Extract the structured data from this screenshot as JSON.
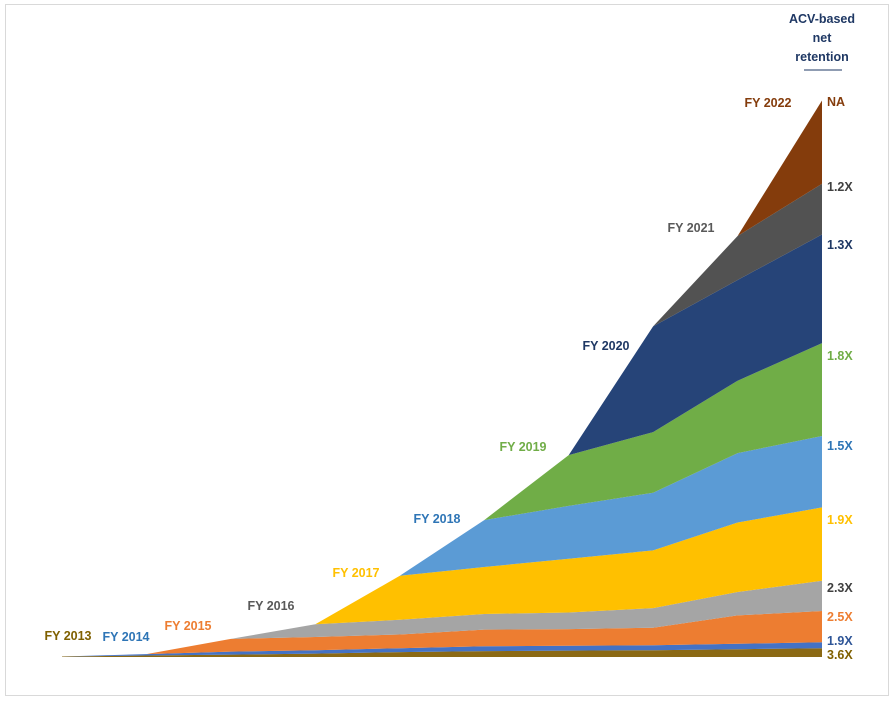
{
  "chart_data": {
    "type": "area",
    "stacked": true,
    "x": [
      "FY 2013",
      "FY 2014",
      "FY 2015",
      "FY 2016",
      "FY 2017",
      "FY 2018",
      "FY 2019",
      "FY 2020",
      "FY 2021",
      "FY 2022"
    ],
    "series": [
      {
        "name": "FY 2013",
        "label": "3.6X",
        "color": "#8B6914",
        "values": [
          0.5,
          1.5,
          2.5,
          3.5,
          5,
          6,
          6.5,
          7,
          8,
          9
        ]
      },
      {
        "name": "FY 2014",
        "label": "1.9X",
        "color": "#4472C4",
        "values": [
          0,
          1.5,
          3,
          3.5,
          4,
          5,
          5,
          5,
          5.5,
          6
        ]
      },
      {
        "name": "FY 2015",
        "label": "2.5X",
        "color": "#ED7D31",
        "values": [
          0,
          0,
          13,
          13.5,
          14,
          17,
          17,
          18,
          29,
          32
        ]
      },
      {
        "name": "FY 2016",
        "label": "2.3X",
        "color": "#A5A5A5",
        "values": [
          0,
          0,
          0,
          13,
          15,
          16,
          17,
          20,
          24,
          31
        ]
      },
      {
        "name": "FY 2017",
        "label": "1.9X",
        "color": "#FFC000",
        "values": [
          0,
          0,
          0,
          0,
          45,
          48,
          55,
          59,
          71,
          75
        ]
      },
      {
        "name": "FY 2018",
        "label": "1.5X",
        "color": "#5B9BD5",
        "values": [
          0,
          0,
          0,
          0,
          0,
          48,
          54,
          59,
          71,
          73
        ]
      },
      {
        "name": "FY 2019",
        "label": "1.8X",
        "color": "#70AD47",
        "values": [
          0,
          0,
          0,
          0,
          0,
          0,
          52,
          62,
          74,
          95
        ]
      },
      {
        "name": "FY 2020",
        "label": "1.3X",
        "color": "#264478",
        "values": [
          0,
          0,
          0,
          0,
          0,
          0,
          0,
          108,
          103,
          111
        ]
      },
      {
        "name": "FY 2021",
        "label": "1.2X",
        "color": "#525252",
        "values": [
          0,
          0,
          0,
          0,
          0,
          0,
          0,
          0,
          45,
          52
        ]
      },
      {
        "name": "FY 2022",
        "label": "NA",
        "color": "#843C0C",
        "values": [
          0,
          0,
          0,
          0,
          0,
          0,
          0,
          0,
          0,
          85
        ]
      }
    ],
    "legend_title": "ACV-based net retention",
    "ylim": [
      0,
      590
    ],
    "grid": false,
    "axes_visible": false
  },
  "header": {
    "lines": [
      "ACV-based",
      "net",
      "retention"
    ],
    "color": "#1F3864"
  },
  "cohort_label_colors": {
    "FY 2013": "#7F6000",
    "FY 2014": "#2E75B6",
    "FY 2015": "#ED7D31",
    "FY 2016": "#595959",
    "FY 2017": "#FFC000",
    "FY 2018": "#2E75B6",
    "FY 2019": "#70AD47",
    "FY 2020": "#1F3864",
    "FY 2021": "#595959",
    "FY 2022": "#843C0C"
  },
  "retention_label_colors": {
    "FY 2013": "#7F6000",
    "FY 2014": "#2E5597",
    "FY 2015": "#ED7D31",
    "FY 2016": "#404040",
    "FY 2017": "#FFC000",
    "FY 2018": "#2E75B6",
    "FY 2019": "#70AD47",
    "FY 2020": "#1F3864",
    "FY 2021": "#404040",
    "FY 2022": "#843C0C"
  }
}
